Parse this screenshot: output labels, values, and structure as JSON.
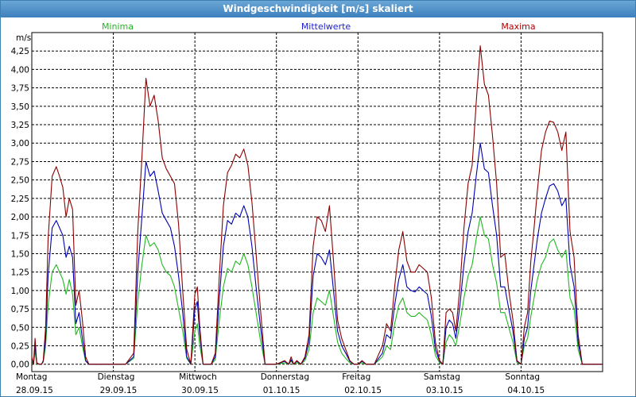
{
  "window": {
    "title": "Windgeschwindigkeit [m/s] skaliert"
  },
  "chart_data": {
    "type": "line",
    "title": "Windgeschwindigkeit [m/s] skaliert",
    "ylabel": "m/s",
    "ylim": [
      -0.1,
      4.5
    ],
    "yticks": [
      "0,00",
      "0,25",
      "0,50",
      "0,75",
      "1,00",
      "1,25",
      "1,50",
      "1,75",
      "2,00",
      "2,25",
      "2,50",
      "2,75",
      "3,00",
      "3,25",
      "3,50",
      "3,75",
      "4,00",
      "4,25"
    ],
    "ytick_values": [
      0,
      0.25,
      0.5,
      0.75,
      1.0,
      1.25,
      1.5,
      1.75,
      2.0,
      2.25,
      2.5,
      2.75,
      3.0,
      3.25,
      3.5,
      3.75,
      4.0,
      4.25
    ],
    "days": [
      {
        "weekday": "Montag",
        "date": "28.09.15"
      },
      {
        "weekday": "Dienstag",
        "date": "29.09.15"
      },
      {
        "weekday": "Mittwoch",
        "date": "30.09.15"
      },
      {
        "weekday": "Donnerstag",
        "date": "01.10.15"
      },
      {
        "weekday": "Freitag",
        "date": "02.10.15"
      },
      {
        "weekday": "Samstag",
        "date": "03.10.15"
      },
      {
        "weekday": "Sonntag",
        "date": "04.10.15"
      }
    ],
    "grid": true,
    "legend_placement": "top",
    "x": [
      0.0,
      0.02,
      0.04,
      0.06,
      0.09,
      0.12,
      0.14,
      0.17,
      0.2,
      0.25,
      0.3,
      0.34,
      0.38,
      0.42,
      0.46,
      0.5,
      0.54,
      0.58,
      0.62,
      0.66,
      0.7,
      0.74,
      0.78,
      0.83,
      0.9,
      1.0,
      1.15,
      1.25,
      1.3,
      1.35,
      1.4,
      1.45,
      1.5,
      1.55,
      1.6,
      1.65,
      1.7,
      1.75,
      1.8,
      1.85,
      1.9,
      1.95,
      2.0,
      2.03,
      2.06,
      2.1,
      2.15,
      2.2,
      2.25,
      2.3,
      2.35,
      2.4,
      2.45,
      2.5,
      2.55,
      2.6,
      2.65,
      2.7,
      2.75,
      2.8,
      2.86,
      2.92,
      3.0,
      3.1,
      3.15,
      3.18,
      3.21,
      3.25,
      3.3,
      3.35,
      3.4,
      3.45,
      3.5,
      3.55,
      3.6,
      3.65,
      3.7,
      3.75,
      3.8,
      3.85,
      3.9,
      3.95,
      4.0,
      4.05,
      4.1,
      4.2,
      4.3,
      4.35,
      4.4,
      4.45,
      4.5,
      4.55,
      4.6,
      4.65,
      4.7,
      4.75,
      4.8,
      4.85,
      4.9,
      4.95,
      5.0,
      5.04,
      5.08,
      5.12,
      5.16,
      5.2,
      5.25,
      5.3,
      5.35,
      5.4,
      5.45,
      5.5,
      5.55,
      5.6,
      5.65,
      5.7,
      5.75,
      5.8,
      5.85,
      5.9,
      5.95,
      6.0,
      6.04,
      6.08,
      6.12,
      6.16,
      6.2,
      6.25,
      6.3,
      6.35,
      6.4,
      6.45,
      6.5,
      6.55,
      6.6,
      6.65,
      6.7,
      6.75,
      6.8,
      6.85,
      6.9,
      6.95,
      7.0
    ],
    "series": [
      {
        "name": "Maxima",
        "color": "#8b0000",
        "values": [
          0.1,
          0.0,
          0.35,
          0.02,
          0.0,
          0.0,
          0.05,
          0.5,
          1.7,
          2.55,
          2.68,
          2.55,
          2.4,
          2.0,
          2.25,
          2.1,
          0.8,
          1.0,
          0.6,
          0.1,
          0.0,
          0.0,
          0.0,
          0.0,
          0.0,
          0.0,
          0.0,
          0.15,
          1.8,
          2.8,
          3.88,
          3.5,
          3.65,
          3.3,
          2.8,
          2.65,
          2.55,
          2.45,
          1.9,
          1.0,
          0.2,
          0.0,
          0.95,
          1.05,
          0.5,
          0.0,
          0.0,
          0.0,
          0.15,
          1.2,
          2.15,
          2.6,
          2.7,
          2.85,
          2.8,
          2.92,
          2.7,
          2.2,
          1.5,
          0.8,
          0.0,
          0.0,
          0.0,
          0.05,
          0.0,
          0.1,
          0.0,
          0.05,
          0.0,
          0.1,
          0.4,
          1.6,
          2.0,
          1.95,
          1.8,
          2.15,
          1.4,
          0.6,
          0.35,
          0.2,
          0.05,
          0.0,
          0.0,
          0.05,
          0.0,
          0.0,
          0.25,
          0.55,
          0.45,
          1.05,
          1.55,
          1.8,
          1.4,
          1.25,
          1.25,
          1.35,
          1.3,
          1.25,
          0.9,
          0.3,
          0.05,
          0.0,
          0.7,
          0.75,
          0.7,
          0.45,
          1.05,
          1.85,
          2.45,
          2.7,
          3.55,
          4.32,
          3.8,
          3.65,
          3.1,
          2.45,
          1.45,
          1.5,
          1.0,
          0.6,
          0.05,
          0.0,
          0.5,
          0.7,
          1.4,
          1.85,
          2.35,
          2.9,
          3.15,
          3.3,
          3.28,
          3.15,
          2.9,
          3.15,
          1.8,
          1.45,
          0.4,
          0.0,
          0.0,
          0.0,
          0.0,
          0.0,
          0.0
        ]
      },
      {
        "name": "Mittelwerte",
        "color": "#0000b4",
        "values": [
          0.08,
          0.0,
          0.25,
          0.02,
          0.0,
          0.0,
          0.04,
          0.35,
          1.2,
          1.85,
          1.95,
          1.85,
          1.75,
          1.45,
          1.6,
          1.45,
          0.55,
          0.7,
          0.35,
          0.05,
          0.0,
          0.0,
          0.0,
          0.0,
          0.0,
          0.0,
          0.0,
          0.1,
          1.25,
          2.0,
          2.75,
          2.55,
          2.62,
          2.35,
          2.05,
          1.95,
          1.85,
          1.6,
          1.2,
          0.7,
          0.1,
          0.0,
          0.75,
          0.85,
          0.4,
          0.0,
          0.0,
          0.0,
          0.1,
          0.9,
          1.6,
          1.95,
          1.9,
          2.05,
          2.0,
          2.15,
          2.0,
          1.6,
          1.05,
          0.55,
          0.0,
          0.0,
          0.0,
          0.04,
          0.0,
          0.06,
          0.0,
          0.04,
          0.0,
          0.08,
          0.3,
          1.2,
          1.5,
          1.45,
          1.35,
          1.55,
          1.0,
          0.45,
          0.25,
          0.15,
          0.04,
          0.0,
          0.0,
          0.04,
          0.0,
          0.0,
          0.15,
          0.4,
          0.35,
          0.8,
          1.15,
          1.35,
          1.05,
          1.0,
          0.98,
          1.05,
          1.0,
          0.95,
          0.65,
          0.2,
          0.04,
          0.0,
          0.5,
          0.6,
          0.55,
          0.35,
          0.8,
          1.35,
          1.8,
          2.05,
          2.55,
          3.0,
          2.65,
          2.6,
          2.15,
          1.75,
          1.05,
          1.05,
          0.75,
          0.45,
          0.04,
          0.0,
          0.35,
          0.5,
          1.0,
          1.35,
          1.7,
          2.05,
          2.25,
          2.42,
          2.45,
          2.35,
          2.15,
          2.25,
          1.35,
          1.05,
          0.3,
          0.0,
          0.0,
          0.0,
          0.0,
          0.0,
          0.0
        ]
      },
      {
        "name": "Minima",
        "color": "#22b822",
        "values": [
          0.05,
          0.0,
          0.18,
          0.01,
          0.0,
          0.0,
          0.03,
          0.25,
          0.8,
          1.25,
          1.35,
          1.25,
          1.15,
          0.95,
          1.15,
          0.95,
          0.4,
          0.5,
          0.25,
          0.04,
          0.0,
          0.0,
          0.0,
          0.0,
          0.0,
          0.0,
          0.0,
          0.08,
          0.85,
          1.35,
          1.75,
          1.6,
          1.65,
          1.55,
          1.35,
          1.25,
          1.2,
          1.05,
          0.75,
          0.45,
          0.08,
          0.0,
          0.45,
          0.55,
          0.25,
          0.0,
          0.0,
          0.0,
          0.06,
          0.6,
          1.05,
          1.3,
          1.25,
          1.4,
          1.35,
          1.5,
          1.35,
          1.05,
          0.7,
          0.35,
          0.0,
          0.0,
          0.0,
          0.02,
          0.0,
          0.04,
          0.0,
          0.02,
          0.0,
          0.05,
          0.2,
          0.7,
          0.9,
          0.85,
          0.8,
          1.0,
          0.65,
          0.3,
          0.15,
          0.08,
          0.02,
          0.0,
          0.0,
          0.02,
          0.0,
          0.0,
          0.1,
          0.25,
          0.2,
          0.55,
          0.8,
          0.9,
          0.7,
          0.65,
          0.65,
          0.7,
          0.65,
          0.6,
          0.4,
          0.12,
          0.02,
          0.0,
          0.3,
          0.4,
          0.35,
          0.25,
          0.55,
          0.9,
          1.2,
          1.35,
          1.7,
          2.0,
          1.75,
          1.7,
          1.35,
          1.1,
          0.7,
          0.7,
          0.5,
          0.3,
          0.02,
          0.0,
          0.25,
          0.35,
          0.65,
          0.9,
          1.15,
          1.35,
          1.45,
          1.65,
          1.7,
          1.55,
          1.45,
          1.55,
          0.9,
          0.75,
          0.2,
          0.0,
          0.0,
          0.0,
          0.0,
          0.0,
          0.0
        ]
      }
    ]
  }
}
